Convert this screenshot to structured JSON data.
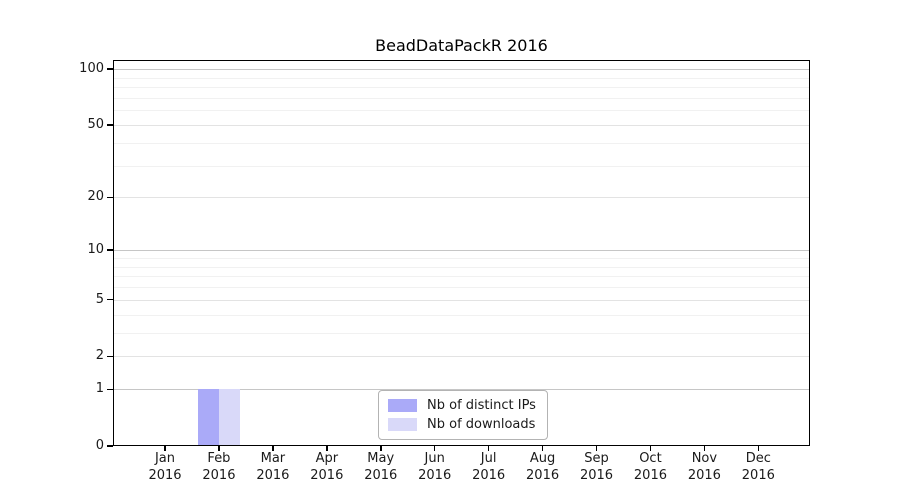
{
  "chart_data": {
    "type": "bar",
    "title": "BeadDataPackR 2016",
    "categories": [
      "Jan",
      "Feb",
      "Mar",
      "Apr",
      "May",
      "Jun",
      "Jul",
      "Aug",
      "Sep",
      "Oct",
      "Nov",
      "Dec"
    ],
    "year_label": "2016",
    "series": [
      {
        "key": "distinct-ips",
        "name": "Nb of distinct IPs",
        "color": "#aaaaf8",
        "values": [
          0,
          1,
          0,
          0,
          0,
          0,
          0,
          0,
          0,
          0,
          0,
          0
        ]
      },
      {
        "key": "downloads",
        "name": "Nb of downloads",
        "color": "#d9d9f9",
        "values": [
          0,
          1,
          0,
          0,
          0,
          0,
          0,
          0,
          0,
          0,
          0,
          0
        ]
      }
    ],
    "y_axis": {
      "scale": "log1p",
      "tick_values": [
        0,
        1,
        2,
        5,
        10,
        20,
        50,
        100
      ],
      "minor_gridline_values": [
        3,
        4,
        6,
        7,
        8,
        9,
        30,
        40,
        60,
        70,
        80,
        90
      ],
      "ylim": [
        0,
        112
      ]
    },
    "legend_position": "bottom-center-inside",
    "grid": "horizontal",
    "colors": {
      "frame": "#000000",
      "major_grid": "#c6c6c6",
      "mid_grid": "#e3e3e3",
      "minor_grid": "#f1f1f1",
      "text": "#1a1a1a",
      "background": "#ffffff"
    }
  }
}
